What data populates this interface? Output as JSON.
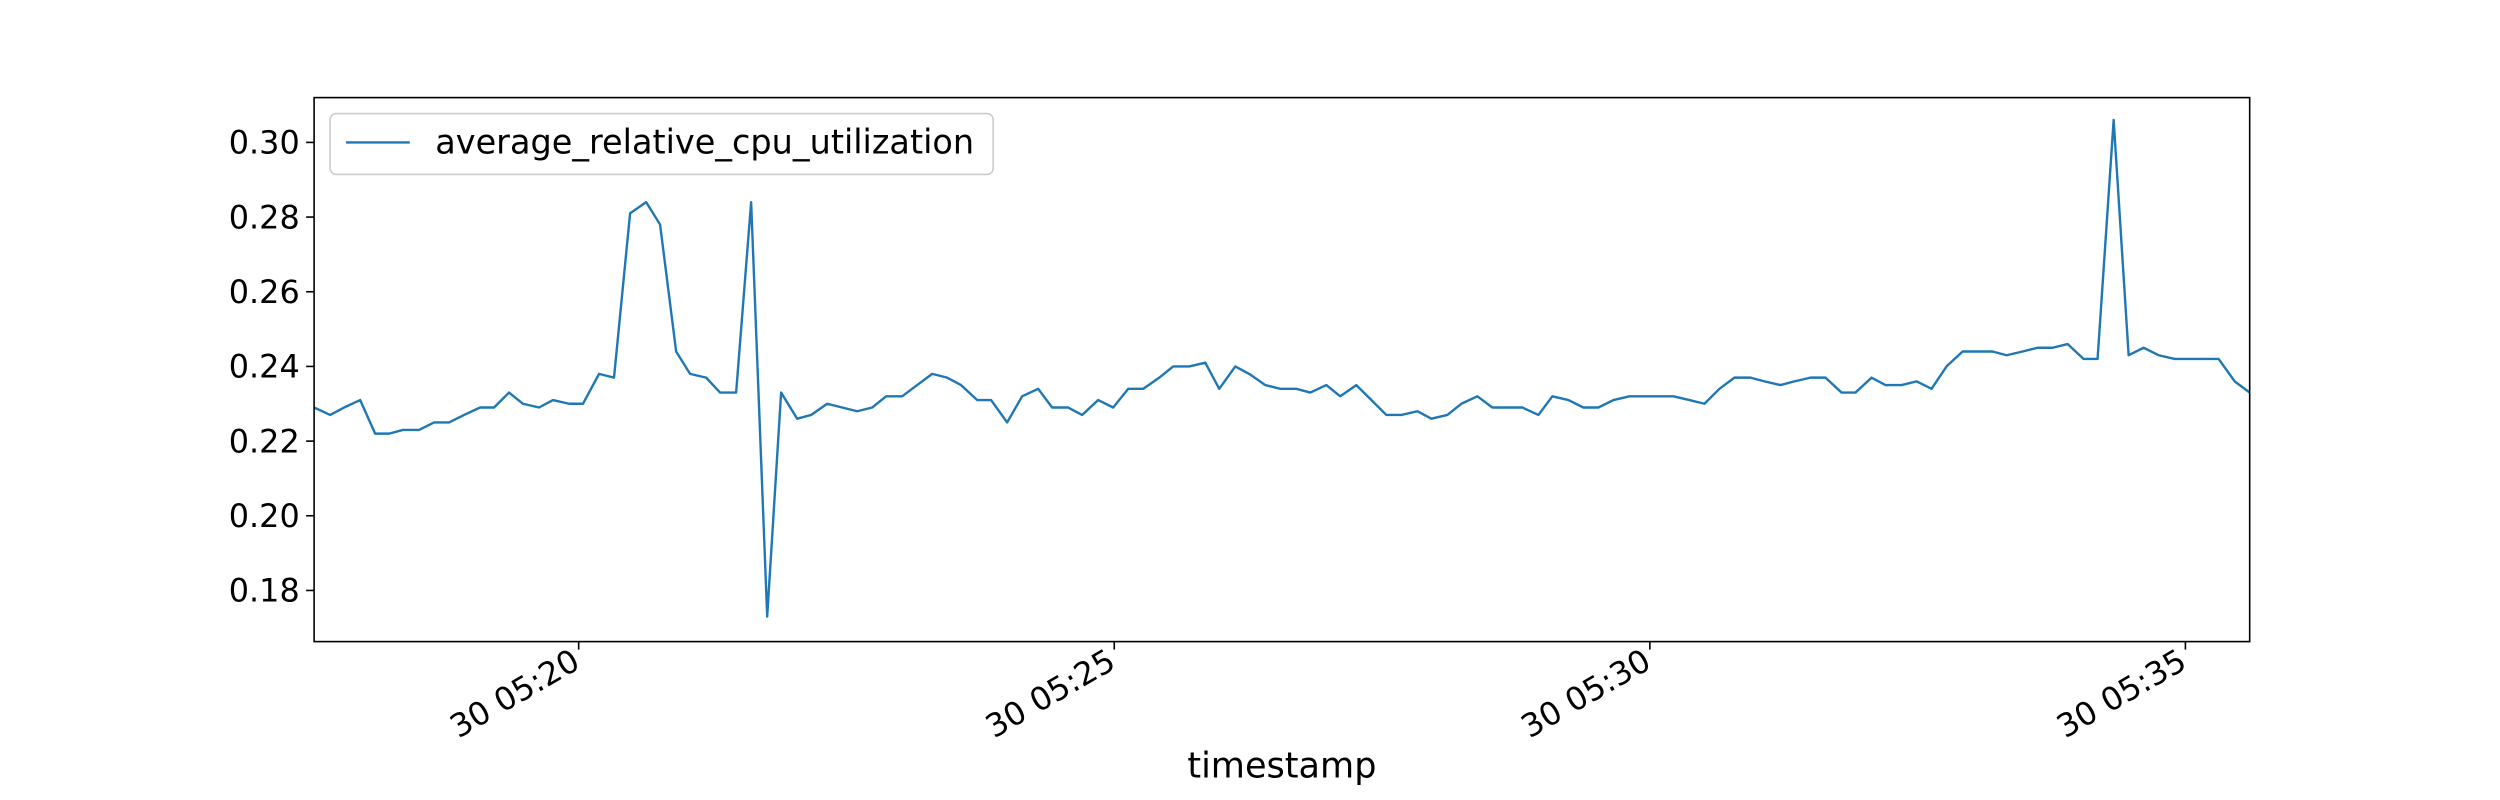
{
  "chart_data": {
    "type": "line",
    "x_label": "timestamp",
    "x": [
      17.53,
      17.68,
      17.81,
      17.96,
      18.1,
      18.23,
      18.36,
      18.51,
      18.65,
      18.79,
      18.93,
      19.08,
      19.21,
      19.35,
      19.48,
      19.63,
      19.76,
      19.91,
      20.04,
      20.19,
      20.33,
      20.48,
      20.63,
      20.76,
      20.91,
      21.04,
      21.19,
      21.32,
      21.47,
      21.61,
      21.76,
      21.89,
      22.04,
      22.17,
      22.32,
      22.46,
      22.6,
      22.74,
      22.87,
      23.02,
      23.16,
      23.3,
      23.44,
      23.57,
      23.72,
      23.85,
      24.0,
      24.14,
      24.29,
      24.42,
      24.57,
      24.7,
      24.85,
      24.99,
      25.13,
      25.27,
      25.42,
      25.55,
      25.7,
      25.85,
      25.98,
      26.13,
      26.26,
      26.41,
      26.55,
      26.7,
      26.83,
      26.98,
      27.11,
      27.26,
      27.4,
      27.54,
      27.68,
      27.83,
      27.96,
      28.11,
      28.24,
      28.39,
      28.53,
      28.68,
      28.81,
      28.96,
      29.09,
      29.24,
      29.38,
      29.52,
      29.66,
      29.81,
      29.94,
      30.09,
      30.22,
      30.37,
      30.51,
      30.65,
      30.79,
      30.94,
      31.07,
      31.22,
      31.35,
      31.5,
      31.64,
      31.79,
      31.92,
      32.07,
      32.2,
      32.35,
      32.49,
      32.63,
      32.77,
      32.92,
      33.05,
      33.2,
      33.33,
      33.48,
      33.62,
      33.76,
      33.9,
      34.05,
      34.18,
      34.33,
      34.47,
      34.61,
      34.75,
      34.9,
      35.03,
      35.18,
      35.31,
      35.46,
      35.6
    ],
    "series": [
      {
        "name": "average_relative_cpu_utilization",
        "color": "#1f77b4",
        "values": [
          0.229,
          0.227,
          0.229,
          0.231,
          0.222,
          0.222,
          0.223,
          0.223,
          0.225,
          0.225,
          0.227,
          0.229,
          0.229,
          0.233,
          0.23,
          0.229,
          0.231,
          0.23,
          0.23,
          0.238,
          0.237,
          0.281,
          0.284,
          0.278,
          0.244,
          0.238,
          0.237,
          0.233,
          0.233,
          0.284,
          0.173,
          0.233,
          0.226,
          0.227,
          0.23,
          0.229,
          0.228,
          0.229,
          0.232,
          0.232,
          0.235,
          0.238,
          0.237,
          0.235,
          0.231,
          0.231,
          0.225,
          0.232,
          0.234,
          0.229,
          0.229,
          0.227,
          0.231,
          0.229,
          0.234,
          0.234,
          0.237,
          0.24,
          0.24,
          0.241,
          0.234,
          0.24,
          0.238,
          0.235,
          0.234,
          0.234,
          0.233,
          0.235,
          0.232,
          0.235,
          0.231,
          0.227,
          0.227,
          0.228,
          0.226,
          0.227,
          0.23,
          0.232,
          0.229,
          0.229,
          0.229,
          0.227,
          0.232,
          0.231,
          0.229,
          0.229,
          0.231,
          0.232,
          0.232,
          0.232,
          0.232,
          0.231,
          0.23,
          0.234,
          0.237,
          0.237,
          0.236,
          0.235,
          0.236,
          0.237,
          0.237,
          0.233,
          0.233,
          0.237,
          0.235,
          0.235,
          0.236,
          0.234,
          0.24,
          0.244,
          0.244,
          0.244,
          0.243,
          0.244,
          0.245,
          0.245,
          0.246,
          0.242,
          0.242,
          0.306,
          0.243,
          0.245,
          0.243,
          0.242,
          0.242,
          0.242,
          0.242,
          0.236,
          0.233
        ]
      }
    ],
    "xlim": [
      17.53,
      35.6
    ],
    "xticks": [
      {
        "value": 20,
        "label": "30 05:20"
      },
      {
        "value": 25,
        "label": "30 05:25"
      },
      {
        "value": 30,
        "label": "30 05:30"
      },
      {
        "value": 35,
        "label": "30 05:35"
      }
    ],
    "ylim": [
      0.1663,
      0.312
    ],
    "yticks": [
      0.18,
      {
        "value": 0.2,
        "label": "0.20"
      },
      0.22,
      0.24,
      0.26,
      0.28,
      {
        "value": 0.3,
        "label": "0.30"
      }
    ],
    "grid": false,
    "legend": "upper-left"
  }
}
